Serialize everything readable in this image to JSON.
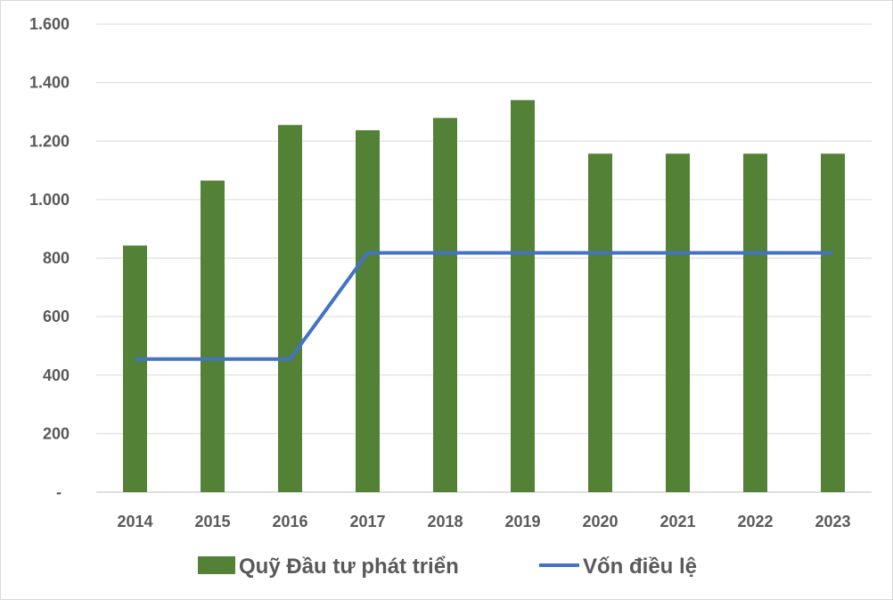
{
  "chart_data": {
    "type": "bar",
    "categories": [
      "2014",
      "2015",
      "2016",
      "2017",
      "2018",
      "2019",
      "2020",
      "2021",
      "2022",
      "2023"
    ],
    "series": [
      {
        "name": "Quỹ Đầu tư phát triển",
        "type": "bar",
        "color": "#538135",
        "values": [
          843,
          1065,
          1255,
          1237,
          1279,
          1340,
          1157,
          1157,
          1157,
          1157
        ]
      },
      {
        "name": "Vốn điều lệ",
        "type": "line",
        "color": "#4472c4",
        "values": [
          455,
          455,
          455,
          818,
          818,
          818,
          818,
          818,
          818,
          818
        ]
      }
    ],
    "y_ticks": [
      "-",
      "200",
      "400",
      "600",
      "800",
      "1.000",
      "1.200",
      "1.400",
      "1.600"
    ],
    "ylim": [
      0,
      1600
    ],
    "grid": true,
    "legend_position": "bottom"
  }
}
